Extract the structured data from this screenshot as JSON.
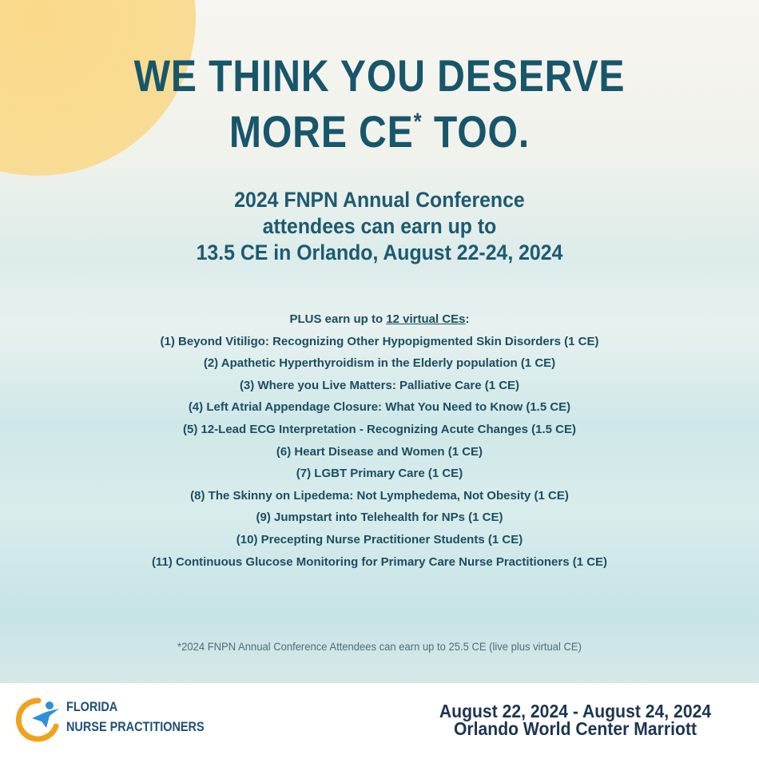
{
  "headline": {
    "line1": "WE THINK YOU DESERVE",
    "line2": [
      "MORE CE",
      "*",
      " TOO."
    ]
  },
  "subheading": [
    "2024 FNPN Annual Conference",
    "attendees can earn up to",
    "13.5 CE in Orlando, August 22-24, 2024"
  ],
  "virtual": {
    "intro": [
      "PLUS earn up to ",
      "12 virtual CEs",
      ":"
    ],
    "sessions": [
      "(1) Beyond Vitiligo: Recognizing Other Hypopigmented Skin Disorders (1 CE)",
      "(2) Apathetic Hyperthyroidism in the Elderly population (1 CE)",
      "(3) Where you Live Matters: Palliative Care (1 CE)",
      "(4) Left Atrial Appendage Closure: What You Need to Know (1.5 CE)",
      "(5) 12-Lead ECG Interpretation - Recognizing Acute Changes (1.5 CE)",
      "(6) Heart Disease and Women (1 CE)",
      "(7) LGBT Primary Care (1 CE)",
      "(8) The Skinny on Lipedema: Not Lymphedema, Not Obesity (1 CE)",
      "(9) Jumpstart into Telehealth for NPs (1 CE)",
      "(10) Precepting Nurse Practitioner Students (1 CE)",
      "(11) Continuous Glucose Monitoring for Primary Care Nurse Practitioners (1 CE)"
    ]
  },
  "footnote": "*2024 FNPN Annual Conference Attendees can earn up to 25.5 CE (live plus virtual CE)",
  "footer": {
    "logo": [
      "FLORIDA",
      "NURSE PRACTITIONERS"
    ],
    "dates": "August 22, 2024 - August 24, 2024",
    "venue": "Orlando World Center Marriott"
  }
}
